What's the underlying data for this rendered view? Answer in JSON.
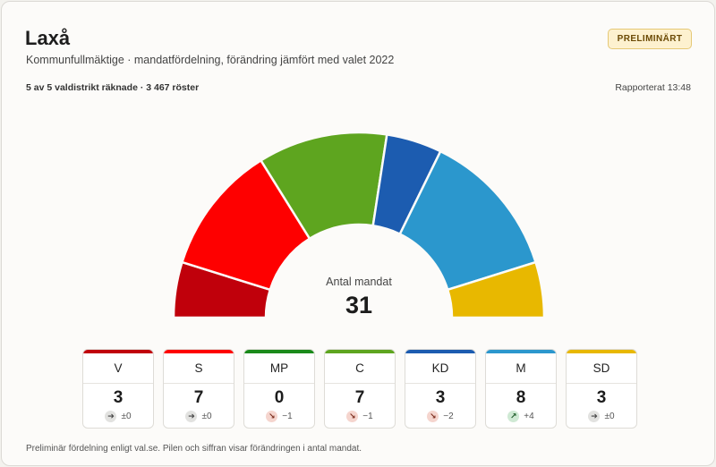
{
  "header": {
    "title": "Laxå",
    "subtitle": "Kommunfullmäktige · mandatfördelning, förändring jämfört med valet 2022",
    "badge": "PRELIMINÄRT",
    "counted": "5 av 5 valdistrikt räknade · 3 467 röster",
    "reported": "Rapporterat 13:48"
  },
  "center": {
    "label": "Antal mandat",
    "total": "31"
  },
  "footnote": "Preliminär fördelning enligt val.se. Pilen och siffran visar förändringen i antal mandat.",
  "chart_data": {
    "type": "pie",
    "subtype": "half-donut",
    "total_seats": 31,
    "categories": [
      "V",
      "S",
      "MP",
      "C",
      "KD",
      "M",
      "SD"
    ],
    "values": [
      3,
      7,
      0,
      7,
      3,
      8,
      3
    ],
    "changes": [
      0,
      0,
      -1,
      -1,
      -2,
      4,
      0
    ],
    "colors": [
      "#c0000b",
      "#fe0000",
      "#1a8a1a",
      "#5ea51f",
      "#1c5cb0",
      "#2b97cd",
      "#e8b800"
    ]
  },
  "legend": [
    {
      "abbr": "V",
      "seats": "3",
      "change_text": "±0",
      "direction": "flat",
      "icon": "arrow-right-icon",
      "color": "#c0000b"
    },
    {
      "abbr": "S",
      "seats": "7",
      "change_text": "±0",
      "direction": "flat",
      "icon": "arrow-right-icon",
      "color": "#fe0000"
    },
    {
      "abbr": "MP",
      "seats": "0",
      "change_text": "−1",
      "direction": "down",
      "icon": "arrow-down-right-icon",
      "color": "#1a8a1a"
    },
    {
      "abbr": "C",
      "seats": "7",
      "change_text": "−1",
      "direction": "down",
      "icon": "arrow-down-right-icon",
      "color": "#5ea51f"
    },
    {
      "abbr": "KD",
      "seats": "3",
      "change_text": "−2",
      "direction": "down",
      "icon": "arrow-down-right-icon",
      "color": "#1c5cb0"
    },
    {
      "abbr": "M",
      "seats": "8",
      "change_text": "+4",
      "direction": "up",
      "icon": "arrow-up-right-icon",
      "color": "#2b97cd"
    },
    {
      "abbr": "SD",
      "seats": "3",
      "change_text": "±0",
      "direction": "flat",
      "icon": "arrow-right-icon",
      "color": "#e8b800"
    }
  ]
}
